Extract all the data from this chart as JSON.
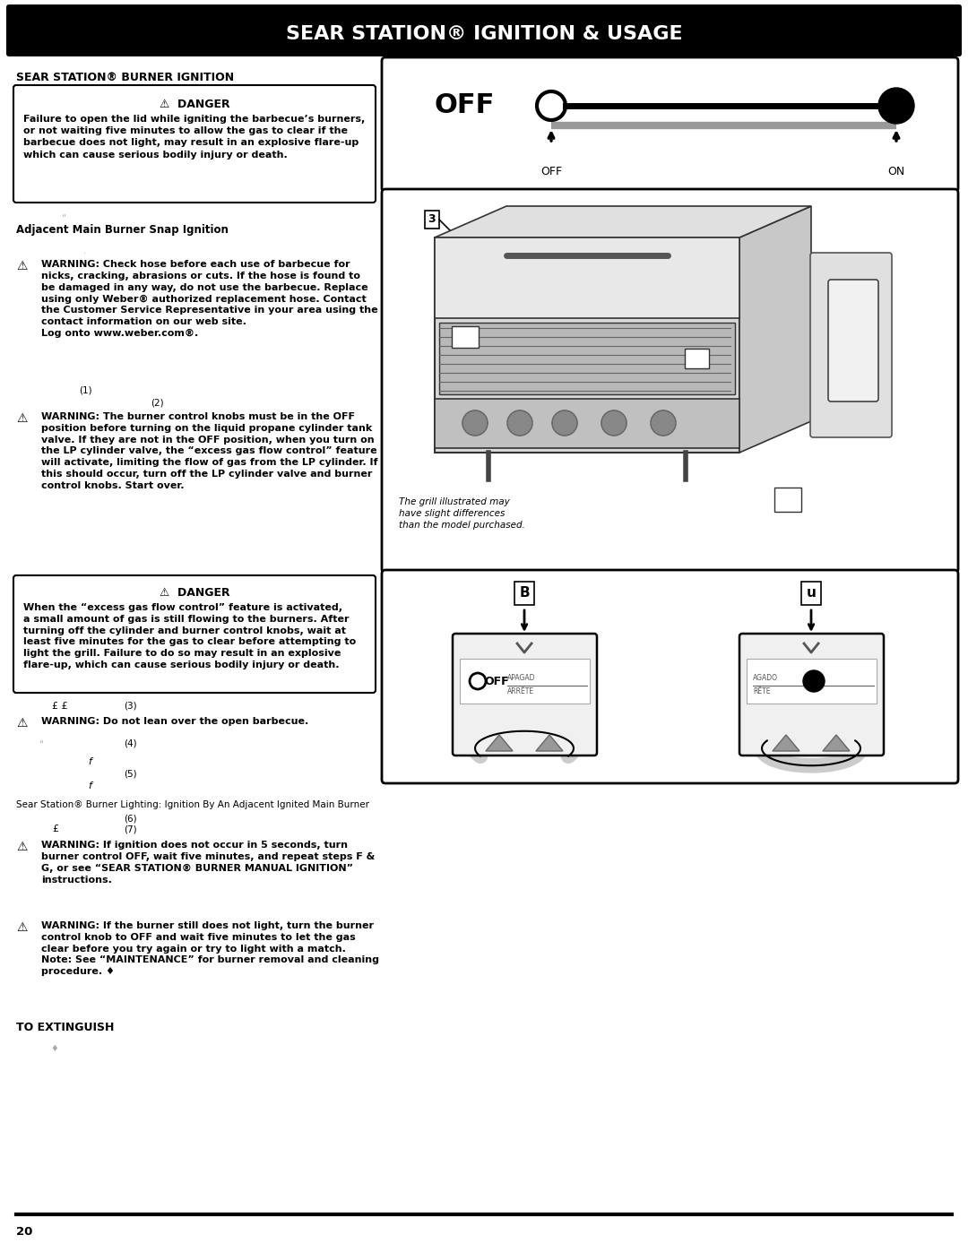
{
  "title": "SEAR STATION® IGNITION & USAGE",
  "title_bg": "#000000",
  "title_color": "#ffffff",
  "page_bg": "#ffffff",
  "section_heading": "SEAR STATION® BURNER IGNITION",
  "danger1_title": "⚠  DANGER",
  "danger1_text": "Failure to open the lid while igniting the barbecue’s burners,\nor not waiting five minutes to allow the gas to clear if the\nbarbecue does not light, may result in an explosive flare-up\nwhich can cause serious bodily injury or death.",
  "adj_label": "Adjacent Main Burner Snap Ignition",
  "warning1_text": "WARNING: Check hose before each use of barbecue for\nnicks, cracking, abrasions or cuts. If the hose is found to\nbe damaged in any way, do not use the barbecue. Replace\nusing only Weber® authorized replacement hose. Contact\nthe Customer Service Representative in your area using the\ncontact information on our web site.\nLog onto www.weber.com®.",
  "step1": "(1)",
  "step2": "(2)",
  "warning2_text": "WARNING: The burner control knobs must be in the OFF\nposition before turning on the liquid propane cylinder tank\nvalve. If they are not in the OFF position, when you turn on\nthe LP cylinder valve, the “excess gas flow control” feature\nwill activate, limiting the flow of gas from the LP cylinder. If\nthis should occur, turn off the LP cylinder valve and burner\ncontrol knobs. Start over.",
  "danger2_title": "⚠  DANGER",
  "danger2_text": "When the “excess gas flow control” feature is activated,\na small amount of gas is still flowing to the burners. After\nturning off the cylinder and burner control knobs, wait at\nleast five minutes for the gas to clear before attempting to\nlight the grill. Failure to do so may result in an explosive\nflare-up, which can cause serious bodily injury or death.",
  "step3_prefix": "£ £",
  "step3": "(3)",
  "warning3_text": "WARNING: Do not lean over the open barbecue.",
  "step4_prefix": "“",
  "step4": "(4)",
  "step5_char": "f",
  "step5": "(5)",
  "step5b_char": "f",
  "sear_label": "Sear Station® Burner Lighting: Ignition By An Adjacent Ignited Main Burner",
  "step6": "(6)",
  "step7_prefix": "£",
  "step7": "(7)",
  "warning4_text": "WARNING: If ignition does not occur in 5 seconds, turn\nburner control OFF, wait five minutes, and repeat steps F &\nG, or see “SEAR STATION® BURNER MANUAL IGNITION”\ninstructions.",
  "warning5_text": "WARNING: If the burner still does not light, turn the burner\ncontrol knob to OFF and wait five minutes to let the gas\nclear before you try again or try to light with a match.\nNote: See “MAINTENANCE” for burner removal and cleaning\nprocedure. ♦",
  "extinguish_label": "TO EXTINGUISH",
  "extinguish_bullet": "♦",
  "page_number": "20"
}
